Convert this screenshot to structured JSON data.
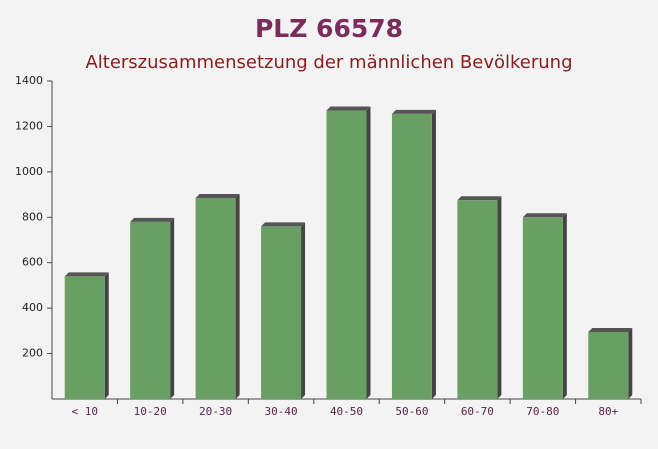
{
  "chart_data": {
    "type": "bar",
    "title": "PLZ 66578",
    "subtitle": "Alterszusammensetzung der männlichen Bevölkerung",
    "categories": [
      "< 10",
      "10-20",
      "20-30",
      "30-40",
      "40-50",
      "50-60",
      "60-70",
      "70-80",
      "80+"
    ],
    "values": [
      540,
      780,
      885,
      760,
      1270,
      1255,
      875,
      800,
      295
    ],
    "color": "#6a9f64",
    "ylim": [
      0,
      1400
    ],
    "yticks": [
      200,
      400,
      600,
      800,
      1000,
      1200,
      1400
    ]
  }
}
